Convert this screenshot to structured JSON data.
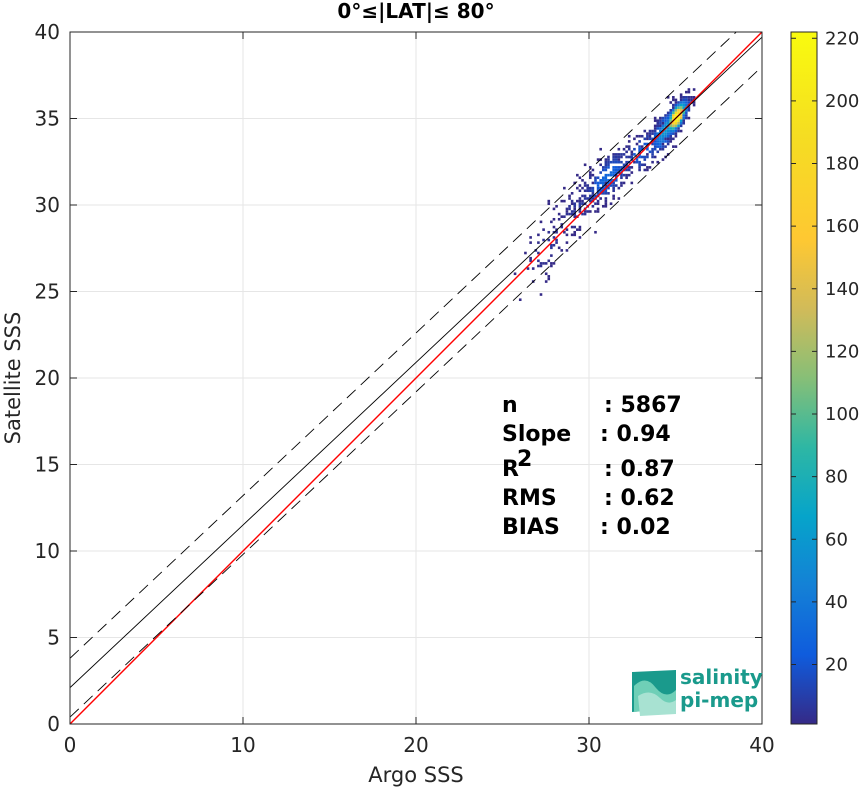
{
  "chart_data": {
    "type": "scatter",
    "title": "0°≤|LAT|≤ 80°",
    "xlabel": "Argo SSS",
    "ylabel": "Satellite SSS",
    "xlim": [
      0,
      40
    ],
    "ylim": [
      0,
      40
    ],
    "xticks": [
      "0",
      "10",
      "20",
      "30",
      "40"
    ],
    "yticks": [
      "0",
      "5",
      "10",
      "15",
      "20",
      "25",
      "30",
      "35",
      "40"
    ],
    "grid": true,
    "colorbar": {
      "ticks": [
        "20",
        "40",
        "60",
        "80",
        "100",
        "120",
        "140",
        "160",
        "180",
        "200",
        "220"
      ],
      "range": [
        1,
        222
      ],
      "colormap": "parula"
    },
    "reference_lines": [
      {
        "name": "identity",
        "intercept": 0,
        "slope": 1,
        "color": "#ff0000",
        "style": "solid"
      },
      {
        "name": "fit",
        "intercept": 2.1,
        "slope": 0.94,
        "color": "#000000",
        "style": "solid"
      },
      {
        "name": "fit-upper",
        "intercept": 3.8,
        "slope": 0.94,
        "color": "#000000",
        "style": "dashed"
      },
      {
        "name": "fit-lower",
        "intercept": 0.4,
        "slope": 0.94,
        "color": "#000000",
        "style": "dashed"
      }
    ],
    "density_clusters": [
      {
        "x": 35.0,
        "y": 35.0,
        "sx": 0.35,
        "sy": 0.55,
        "n": 650,
        "max": 222
      },
      {
        "x": 34.3,
        "y": 34.2,
        "sx": 0.5,
        "sy": 0.8,
        "n": 220,
        "max": 60
      },
      {
        "x": 33.0,
        "y": 33.0,
        "sx": 0.9,
        "sy": 0.9,
        "n": 140,
        "max": 25
      },
      {
        "x": 31.0,
        "y": 31.5,
        "sx": 0.9,
        "sy": 1.0,
        "n": 260,
        "max": 30
      },
      {
        "x": 29.5,
        "y": 30.0,
        "sx": 1.0,
        "sy": 1.2,
        "n": 80,
        "max": 8
      },
      {
        "x": 27.5,
        "y": 27.5,
        "sx": 0.8,
        "sy": 1.4,
        "n": 60,
        "max": 6
      }
    ],
    "stats": [
      {
        "label": "n",
        "value": ": 5867"
      },
      {
        "label": "Slope",
        "value": ": 0.94"
      },
      {
        "label": "R",
        "sup": "2",
        "value": ": 0.87"
      },
      {
        "label": "RMS",
        "value": ": 0.62"
      },
      {
        "label": "BIAS",
        "value": ": 0.02"
      }
    ]
  },
  "logo": {
    "line1": "salinity",
    "line2": "pi-mep"
  }
}
